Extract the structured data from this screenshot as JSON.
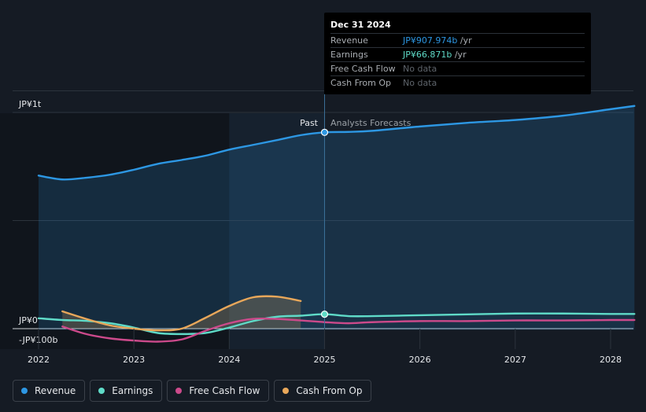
{
  "colors": {
    "revenue": "#2d97e3",
    "earnings": "#5fdbc8",
    "free_cash_flow": "#cc4a8b",
    "cash_from_op": "#e8a75a"
  },
  "tooltip": {
    "date": "Dec 31 2024",
    "rows": [
      {
        "name": "Revenue",
        "value": "JP¥907.974b",
        "unit": " /yr",
        "color": "#2d97e3"
      },
      {
        "name": "Earnings",
        "value": "JP¥66.871b",
        "unit": " /yr",
        "color": "#5fdbc8"
      },
      {
        "name": "Free Cash Flow",
        "value": "No data",
        "unit": "",
        "color": "#5e646b"
      },
      {
        "name": "Cash From Op",
        "value": "No data",
        "unit": "",
        "color": "#5e646b"
      }
    ]
  },
  "legend": [
    {
      "label": "Revenue",
      "color": "#2d97e3"
    },
    {
      "label": "Earnings",
      "color": "#5fdbc8"
    },
    {
      "label": "Free Cash Flow",
      "color": "#cc4a8b"
    },
    {
      "label": "Cash From Op",
      "color": "#e8a75a"
    }
  ],
  "chart_data": {
    "type": "line",
    "title": "",
    "xlabel": "",
    "ylabel": "",
    "unit": "JP¥ billions",
    "xlim": [
      2022.0,
      2028.25
    ],
    "ylim": [
      -100,
      1100
    ],
    "y_tick_labels": [
      {
        "value": 1000,
        "label": "JP¥1t"
      },
      {
        "value": 0,
        "label": "JP¥0"
      },
      {
        "value": -100,
        "label": "-JP¥100b"
      }
    ],
    "x_tick_labels": [
      "2022",
      "2023",
      "2024",
      "2025",
      "2026",
      "2027",
      "2028"
    ],
    "x_ticks": [
      2022,
      2023,
      2024,
      2025,
      2026,
      2027,
      2028
    ],
    "divider_x": 2025.0,
    "highlight_start": 2024.0,
    "region_labels": {
      "past": "Past",
      "forecast": "Analysts Forecasts"
    },
    "grid": true,
    "legend_position": "bottom-left",
    "series": [
      {
        "name": "Revenue",
        "key": "revenue",
        "area": true,
        "points": [
          [
            2022.0,
            708
          ],
          [
            2022.25,
            690
          ],
          [
            2022.5,
            698
          ],
          [
            2022.75,
            712
          ],
          [
            2023.0,
            735
          ],
          [
            2023.25,
            762
          ],
          [
            2023.5,
            780
          ],
          [
            2023.75,
            800
          ],
          [
            2024.0,
            828
          ],
          [
            2024.25,
            850
          ],
          [
            2024.5,
            872
          ],
          [
            2024.75,
            895
          ],
          [
            2025.0,
            908
          ],
          [
            2025.25,
            910
          ],
          [
            2025.5,
            915
          ],
          [
            2026.0,
            935
          ],
          [
            2026.5,
            952
          ],
          [
            2027.0,
            965
          ],
          [
            2027.5,
            985
          ],
          [
            2028.0,
            1015
          ],
          [
            2028.25,
            1030
          ]
        ]
      },
      {
        "name": "Earnings",
        "key": "earnings",
        "points": [
          [
            2022.0,
            48
          ],
          [
            2022.25,
            40
          ],
          [
            2022.5,
            36
          ],
          [
            2022.75,
            25
          ],
          [
            2023.0,
            5
          ],
          [
            2023.25,
            -20
          ],
          [
            2023.5,
            -25
          ],
          [
            2023.75,
            -20
          ],
          [
            2024.0,
            5
          ],
          [
            2024.25,
            35
          ],
          [
            2024.5,
            55
          ],
          [
            2024.75,
            60
          ],
          [
            2025.0,
            67
          ],
          [
            2025.25,
            58
          ],
          [
            2025.5,
            58
          ],
          [
            2026.0,
            62
          ],
          [
            2026.5,
            66
          ],
          [
            2027.0,
            70
          ],
          [
            2027.5,
            70
          ],
          [
            2028.0,
            68
          ],
          [
            2028.25,
            68
          ]
        ]
      },
      {
        "name": "Free Cash Flow",
        "key": "free_cash_flow",
        "points": [
          [
            2022.25,
            10
          ],
          [
            2022.5,
            -25
          ],
          [
            2022.75,
            -45
          ],
          [
            2023.0,
            -55
          ],
          [
            2023.25,
            -60
          ],
          [
            2023.5,
            -50
          ],
          [
            2023.75,
            -10
          ],
          [
            2024.0,
            25
          ],
          [
            2024.25,
            45
          ],
          [
            2024.5,
            45
          ],
          [
            2024.75,
            38
          ],
          [
            2025.0,
            30
          ],
          [
            2025.25,
            25
          ],
          [
            2025.5,
            30
          ],
          [
            2026.0,
            35
          ],
          [
            2026.5,
            35
          ],
          [
            2027.0,
            38
          ],
          [
            2027.5,
            38
          ],
          [
            2028.0,
            40
          ],
          [
            2028.25,
            40
          ]
        ]
      },
      {
        "name": "Cash From Op",
        "key": "cash_from_op",
        "area": true,
        "points": [
          [
            2022.25,
            80
          ],
          [
            2022.5,
            45
          ],
          [
            2022.75,
            15
          ],
          [
            2023.0,
            0
          ],
          [
            2023.25,
            -8
          ],
          [
            2023.5,
            0
          ],
          [
            2023.75,
            50
          ],
          [
            2024.0,
            105
          ],
          [
            2024.25,
            145
          ],
          [
            2024.5,
            148
          ],
          [
            2024.75,
            128
          ]
        ]
      }
    ],
    "markers": [
      {
        "key": "revenue",
        "x": 2025.0,
        "y": 908
      },
      {
        "key": "earnings",
        "x": 2025.0,
        "y": 67
      }
    ]
  }
}
